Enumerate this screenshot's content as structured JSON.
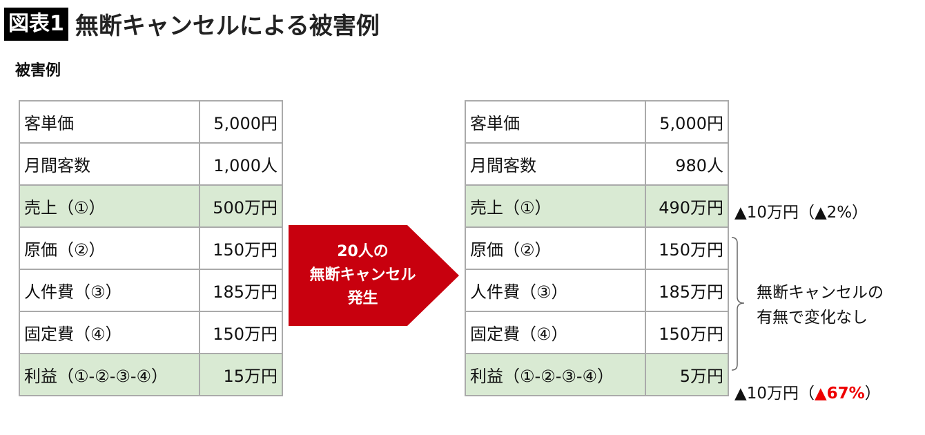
{
  "header": {
    "badge": "図表1",
    "title": "無断キャンセルによる被害例"
  },
  "subtitle": "被害例",
  "before": [
    {
      "label": "客単価",
      "value": "5,000円",
      "highlight": false
    },
    {
      "label": "月間客数",
      "value": "1,000人",
      "highlight": false
    },
    {
      "label": "売上（①）",
      "value": "500万円",
      "highlight": true
    },
    {
      "label": "原価（②）",
      "value": "150万円",
      "highlight": false
    },
    {
      "label": "人件費（③）",
      "value": "185万円",
      "highlight": false
    },
    {
      "label": "固定費（④）",
      "value": "150万円",
      "highlight": false
    },
    {
      "label": "利益（①-②-③-④）",
      "value": "15万円",
      "highlight": true
    }
  ],
  "after": [
    {
      "label": "客単価",
      "value": "5,000円",
      "highlight": false
    },
    {
      "label": "月間客数",
      "value": "980人",
      "highlight": false
    },
    {
      "label": "売上（①）",
      "value": "490万円",
      "highlight": true
    },
    {
      "label": "原価（②）",
      "value": "150万円",
      "highlight": false
    },
    {
      "label": "人件費（③）",
      "value": "185万円",
      "highlight": false
    },
    {
      "label": "固定費（④）",
      "value": "150万円",
      "highlight": false
    },
    {
      "label": "利益（①-②-③-④）",
      "value": "5万円",
      "highlight": true
    }
  ],
  "arrow": {
    "line1": "20人の",
    "line2": "無断キャンセル",
    "line3": "発生",
    "color": "#c8000e"
  },
  "notes": {
    "sales": {
      "prefix": "▲10万円（",
      "pct": "▲2%",
      "suffix": "）"
    },
    "costs": {
      "line1": "無断キャンセルの",
      "line2": "有無で変化なし"
    },
    "profit": {
      "prefix": "▲10万円（",
      "pct": "▲67%",
      "suffix": "）",
      "pct_color": "#e00000"
    }
  },
  "colors": {
    "highlight_row": "#d9ead3",
    "border": "#aaaaaa"
  }
}
